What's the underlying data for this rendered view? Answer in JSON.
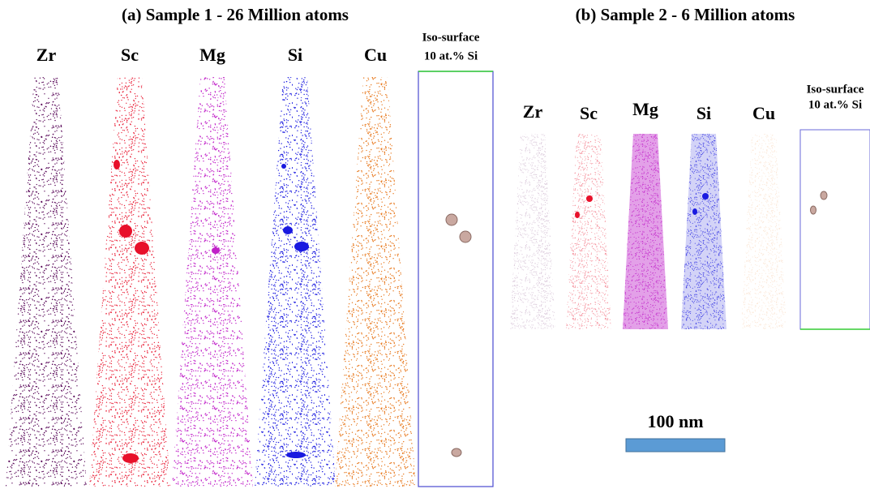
{
  "panels": [
    {
      "title": "(a) Sample 1 - 26 Million atoms",
      "elements": [
        "Zr",
        "Sc",
        "Mg",
        "Si",
        "Cu"
      ],
      "iso_label": [
        "Iso-surface",
        "10 at.% Si"
      ]
    },
    {
      "title": "(b) Sample 2 - 6 Million atoms",
      "elements": [
        "Zr",
        "Sc",
        "Mg",
        "Si",
        "Cu"
      ],
      "iso_label": [
        "Iso-surface",
        "10 at.% Si"
      ]
    }
  ],
  "scale_bar": {
    "label": "100 nm"
  }
}
